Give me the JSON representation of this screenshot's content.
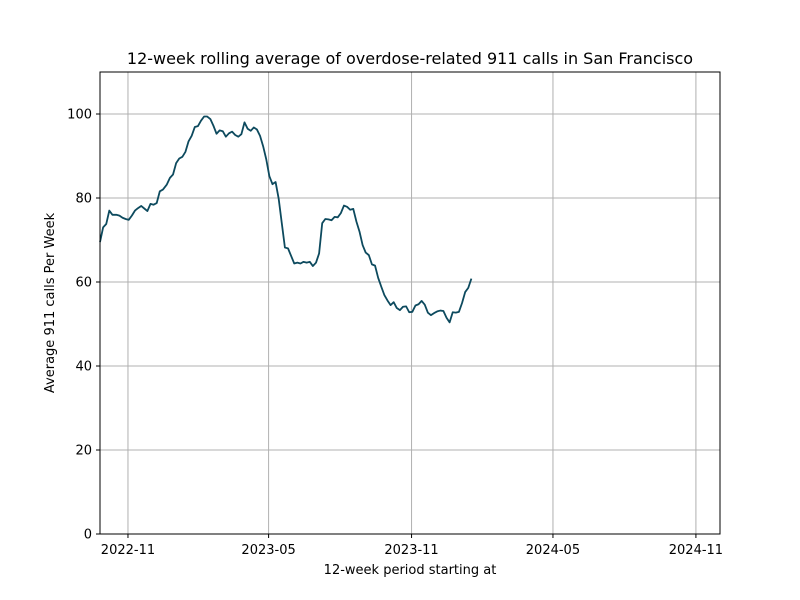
{
  "chart_data": {
    "type": "line",
    "title": "12-week rolling average of overdose-related 911 calls in San Francisco",
    "xlabel": "12-week period starting at",
    "ylabel": "Average 911 calls Per Week",
    "ylim": [
      0,
      110
    ],
    "yticks": [
      0,
      20,
      40,
      60,
      80,
      100
    ],
    "xlim": [
      "2022-09-26",
      "2024-12-02"
    ],
    "xticks": [
      {
        "date": "2022-11-01",
        "label": "2022-11"
      },
      {
        "date": "2023-05-01",
        "label": "2023-05"
      },
      {
        "date": "2023-11-01",
        "label": "2023-11"
      },
      {
        "date": "2024-05-01",
        "label": "2024-05"
      },
      {
        "date": "2024-11-01",
        "label": "2024-11"
      }
    ],
    "grid": true,
    "line_color": "#0d4a5e",
    "series": [
      {
        "points": [
          [
            "2022-09-26",
            69.5
          ],
          [
            "2022-09-30",
            73.0
          ],
          [
            "2022-10-04",
            73.8
          ],
          [
            "2022-10-08",
            77.0
          ],
          [
            "2022-10-12",
            76.0
          ],
          [
            "2022-10-17",
            76.0
          ],
          [
            "2022-10-21",
            75.8
          ],
          [
            "2022-10-25",
            75.3
          ],
          [
            "2022-10-29",
            75.0
          ],
          [
            "2022-11-02",
            74.8
          ],
          [
            "2022-11-06",
            75.8
          ],
          [
            "2022-11-10",
            77.0
          ],
          [
            "2022-11-14",
            77.6
          ],
          [
            "2022-11-18",
            78.1
          ],
          [
            "2022-11-22",
            77.5
          ],
          [
            "2022-11-26",
            76.9
          ],
          [
            "2022-11-30",
            78.6
          ],
          [
            "2022-12-04",
            78.4
          ],
          [
            "2022-12-08",
            78.8
          ],
          [
            "2022-12-12",
            81.6
          ],
          [
            "2022-12-16",
            82.0
          ],
          [
            "2022-12-21",
            83.2
          ],
          [
            "2022-12-25",
            84.8
          ],
          [
            "2022-12-29",
            85.6
          ],
          [
            "2023-01-02",
            88.3
          ],
          [
            "2023-01-06",
            89.4
          ],
          [
            "2023-01-10",
            89.8
          ],
          [
            "2023-01-14",
            91.0
          ],
          [
            "2023-01-18",
            93.5
          ],
          [
            "2023-01-22",
            94.8
          ],
          [
            "2023-01-26",
            96.9
          ],
          [
            "2023-01-30",
            97.1
          ],
          [
            "2023-02-03",
            98.4
          ],
          [
            "2023-02-07",
            99.4
          ],
          [
            "2023-02-11",
            99.4
          ],
          [
            "2023-02-15",
            98.8
          ],
          [
            "2023-02-19",
            97.2
          ],
          [
            "2023-02-23",
            95.3
          ],
          [
            "2023-02-27",
            96.1
          ],
          [
            "2023-03-03",
            95.9
          ],
          [
            "2023-03-07",
            94.6
          ],
          [
            "2023-03-11",
            95.4
          ],
          [
            "2023-03-15",
            95.8
          ],
          [
            "2023-03-19",
            95.0
          ],
          [
            "2023-03-23",
            94.6
          ],
          [
            "2023-03-27",
            95.2
          ],
          [
            "2023-03-31",
            98.0
          ],
          [
            "2023-04-04",
            96.5
          ],
          [
            "2023-04-08",
            96.0
          ],
          [
            "2023-04-12",
            96.8
          ],
          [
            "2023-04-16",
            96.3
          ],
          [
            "2023-04-20",
            94.8
          ],
          [
            "2023-04-24",
            92.3
          ],
          [
            "2023-04-28",
            89.2
          ],
          [
            "2023-05-02",
            85.2
          ],
          [
            "2023-05-06",
            83.3
          ],
          [
            "2023-05-10",
            83.8
          ],
          [
            "2023-05-14",
            79.8
          ],
          [
            "2023-05-18",
            74.0
          ],
          [
            "2023-05-22",
            68.2
          ],
          [
            "2023-05-26",
            68.0
          ],
          [
            "2023-05-30",
            66.2
          ],
          [
            "2023-06-03",
            64.4
          ],
          [
            "2023-06-07",
            64.6
          ],
          [
            "2023-06-11",
            64.4
          ],
          [
            "2023-06-15",
            64.8
          ],
          [
            "2023-06-19",
            64.6
          ],
          [
            "2023-06-23",
            64.8
          ],
          [
            "2023-06-27",
            63.8
          ],
          [
            "2023-07-01",
            64.6
          ],
          [
            "2023-07-05",
            66.8
          ],
          [
            "2023-07-09",
            74.0
          ],
          [
            "2023-07-13",
            75.0
          ],
          [
            "2023-07-17",
            74.9
          ],
          [
            "2023-07-21",
            74.7
          ],
          [
            "2023-07-25",
            75.5
          ],
          [
            "2023-07-29",
            75.4
          ],
          [
            "2023-08-02",
            76.4
          ],
          [
            "2023-08-06",
            78.2
          ],
          [
            "2023-08-10",
            77.9
          ],
          [
            "2023-08-14",
            77.2
          ],
          [
            "2023-08-18",
            77.4
          ],
          [
            "2023-08-22",
            74.4
          ],
          [
            "2023-08-26",
            72.0
          ],
          [
            "2023-08-30",
            68.8
          ],
          [
            "2023-09-03",
            67.0
          ],
          [
            "2023-09-07",
            66.4
          ],
          [
            "2023-09-11",
            64.2
          ],
          [
            "2023-09-15",
            63.9
          ],
          [
            "2023-09-19",
            61.0
          ],
          [
            "2023-09-23",
            58.9
          ],
          [
            "2023-09-27",
            56.9
          ],
          [
            "2023-10-01",
            55.6
          ],
          [
            "2023-10-05",
            54.5
          ],
          [
            "2023-10-09",
            55.2
          ],
          [
            "2023-10-13",
            53.8
          ],
          [
            "2023-10-17",
            53.3
          ],
          [
            "2023-10-21",
            54.1
          ],
          [
            "2023-10-25",
            54.2
          ],
          [
            "2023-10-29",
            52.8
          ],
          [
            "2023-11-02",
            52.9
          ],
          [
            "2023-11-06",
            54.4
          ],
          [
            "2023-11-10",
            54.7
          ],
          [
            "2023-11-14",
            55.5
          ],
          [
            "2023-11-18",
            54.6
          ],
          [
            "2023-11-22",
            52.7
          ],
          [
            "2023-11-26",
            52.1
          ],
          [
            "2023-11-30",
            52.6
          ],
          [
            "2023-12-04",
            53.0
          ],
          [
            "2023-12-08",
            53.2
          ],
          [
            "2023-12-12",
            53.1
          ],
          [
            "2023-12-16",
            51.5
          ],
          [
            "2023-12-20",
            50.4
          ],
          [
            "2023-12-24",
            52.8
          ],
          [
            "2023-12-28",
            52.7
          ],
          [
            "2024-01-01",
            52.9
          ],
          [
            "2024-01-05",
            55.0
          ],
          [
            "2024-01-09",
            57.6
          ],
          [
            "2024-01-13",
            58.6
          ],
          [
            "2024-01-17",
            60.8
          ]
        ]
      }
    ]
  }
}
